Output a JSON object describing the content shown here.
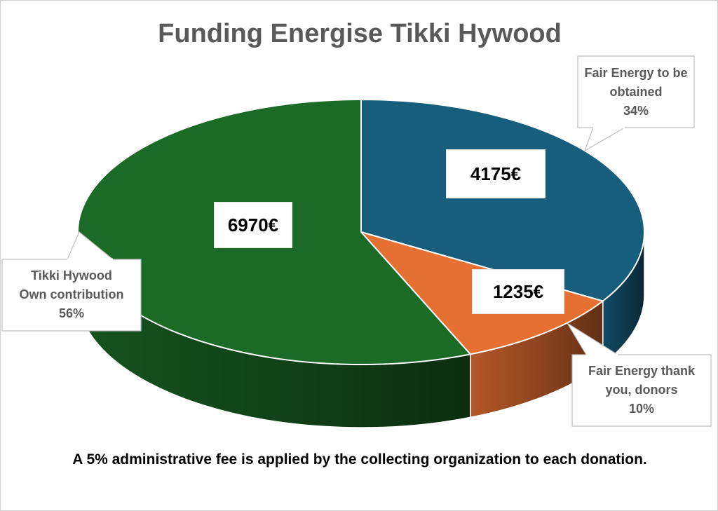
{
  "chart_data": {
    "type": "pie",
    "title": "Funding Energise Tikki Hywood",
    "slices": [
      {
        "label": "Fair Energy to be obtained",
        "value": 4175,
        "value_label": "4175€",
        "percent_label": "34%",
        "color": "#175E7D"
      },
      {
        "label": "Fair Energy thank you, donors",
        "value": 1235,
        "value_label": "1235€",
        "percent_label": "10%",
        "color": "#E67032"
      },
      {
        "label": "Tikki Hywood Own contribution",
        "value": 6970,
        "value_label": "6970€",
        "percent_label": "56%",
        "color": "#1B6B27"
      }
    ],
    "legend": "none",
    "footnote": "A 5% administrative fee is applied by the collecting organization to each donation."
  },
  "callouts": {
    "blue": {
      "line1": "Fair Energy to be",
      "line2": "obtained",
      "line3": "34%"
    },
    "orange": {
      "line1": "Fair Energy thank",
      "line2": "you, donors",
      "line3": "10%"
    },
    "green": {
      "line1": "Tikki Hywood",
      "line2": "Own contribution",
      "line3": "56%"
    }
  }
}
